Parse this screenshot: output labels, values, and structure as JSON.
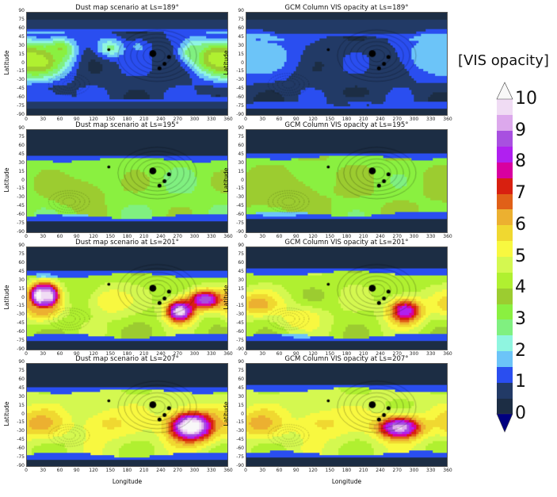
{
  "chart_data": {
    "type": "heatmap",
    "colorbar": {
      "label": "[VIS opacity]",
      "ticks": [
        "0",
        "1",
        "2",
        "3",
        "4",
        "5",
        "6",
        "7",
        "8",
        "9",
        "10"
      ],
      "levels_step": 0.5,
      "vmin": 0,
      "vmax": 10,
      "colors": [
        "#1c2d44",
        "#223a66",
        "#2a4ef0",
        "#6cc4f8",
        "#8ff5e0",
        "#80f080",
        "#8af040",
        "#9ccc30",
        "#b0f030",
        "#d4f850",
        "#f8f840",
        "#f0d830",
        "#ecb030",
        "#e06018",
        "#d82010",
        "#d800a0",
        "#b020f0",
        "#a850e0",
        "#dca8ec",
        "#f0dcf4"
      ],
      "over_color": "#f8f8f8",
      "under_color": "#000080"
    },
    "xlabel": "Longitude",
    "ylabel": "Latitude",
    "xticks": [
      "0",
      "30",
      "60",
      "90",
      "120",
      "150",
      "180",
      "210",
      "240",
      "270",
      "300",
      "330",
      "360"
    ],
    "yticks": [
      "90",
      "75",
      "60",
      "45",
      "30",
      "15",
      "0",
      "-15",
      "-30",
      "-45",
      "-60",
      "-75",
      "-90"
    ],
    "xlim": [
      0,
      360
    ],
    "ylim": [
      -90,
      90
    ],
    "panels": [
      {
        "title": "Dust map scenario at Ls=189°",
        "base": 0.6,
        "band": [
          -60,
          55,
          0.8
        ],
        "blobs": [
          [
            20,
            5,
            4.3,
            35,
            22
          ],
          [
            60,
            25,
            3.5,
            18,
            14
          ],
          [
            150,
            28,
            2.6,
            18,
            12
          ],
          [
            340,
            10,
            4.3,
            30,
            20
          ],
          [
            300,
            20,
            3,
            18,
            14
          ],
          [
            200,
            30,
            1.6,
            15,
            10
          ],
          [
            30,
            -55,
            1.4,
            20,
            8
          ]
        ]
      },
      {
        "title": "GCM Column VIS opacity at Ls=189°",
        "base": 0.5,
        "band": [
          -70,
          45,
          0.7
        ],
        "blobs": [
          [
            25,
            15,
            1.8,
            55,
            28
          ],
          [
            335,
            15,
            1.8,
            45,
            28
          ],
          [
            200,
            -70,
            1.1,
            40,
            8
          ]
        ]
      },
      {
        "title": "Dust map scenario at Ls=195°",
        "base": 0.3,
        "band": [
          -62,
          38,
          3.2
        ],
        "blobs": [
          [
            90,
            -20,
            4,
            40,
            20
          ],
          [
            210,
            -20,
            2.4,
            25,
            15
          ],
          [
            260,
            20,
            1.4,
            20,
            10
          ]
        ]
      },
      {
        "title": "GCM Column VIS opacity at Ls=195°",
        "base": 0.3,
        "band": [
          -58,
          42,
          3.4
        ],
        "blobs": [
          [
            60,
            -20,
            4,
            50,
            20
          ],
          [
            250,
            0,
            2.6,
            25,
            15
          ]
        ]
      },
      {
        "title": "Dust map scenario at Ls=201°",
        "base": 0.3,
        "band": [
          -66,
          40,
          4.2
        ],
        "blobs": [
          [
            22,
            5,
            10.5,
            12,
            14
          ],
          [
            40,
            5,
            10,
            12,
            14
          ],
          [
            275,
            -22,
            10,
            18,
            14
          ],
          [
            320,
            -2,
            9,
            22,
            12
          ],
          [
            25,
            -15,
            6.5,
            25,
            18
          ],
          [
            150,
            -5,
            5.5,
            30,
            20
          ]
        ]
      },
      {
        "title": "GCM Column VIS opacity at Ls=201°",
        "base": 0.3,
        "band": [
          -66,
          44,
          4.3
        ],
        "blobs": [
          [
            285,
            -22,
            8.5,
            22,
            16
          ],
          [
            20,
            -10,
            6.3,
            30,
            15
          ],
          [
            100,
            -35,
            5.5,
            30,
            15
          ]
        ]
      },
      {
        "title": "Dust map scenario at Ls=207°",
        "base": 0.3,
        "band": [
          -70,
          42,
          4.6
        ],
        "blobs": [
          [
            295,
            -20,
            10.8,
            28,
            18
          ],
          [
            25,
            -15,
            6.3,
            30,
            18
          ],
          [
            150,
            -15,
            5.6,
            40,
            20
          ]
        ]
      },
      {
        "title": "GCM Column VIS opacity at Ls=207°",
        "base": 0.3,
        "band": [
          -68,
          44,
          4.6
        ],
        "blobs": [
          [
            275,
            -22,
            9.6,
            28,
            14
          ],
          [
            25,
            -15,
            6.3,
            30,
            18
          ],
          [
            140,
            -15,
            5.6,
            40,
            20
          ]
        ]
      }
    ],
    "volcanoes": [
      [
        226,
        18,
        7
      ],
      [
        255,
        12,
        4
      ],
      [
        247,
        0,
        4
      ],
      [
        238,
        -8,
        4
      ],
      [
        147,
        25,
        3
      ]
    ]
  }
}
